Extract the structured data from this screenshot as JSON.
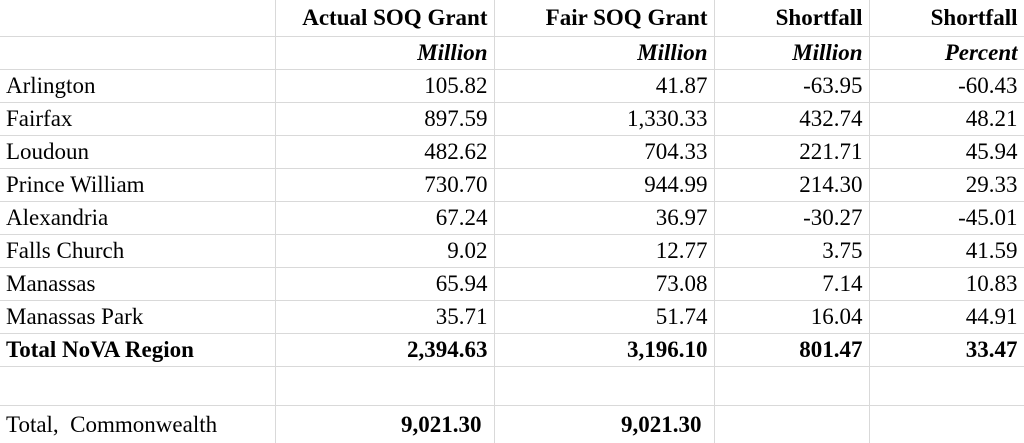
{
  "header": {
    "col1_title": "Actual SOQ Grant",
    "col2_title": "Fair SOQ Grant",
    "col3_title": "Shortfall",
    "col4_title": "Shortfall",
    "col1_unit": "Million",
    "col2_unit": "Million",
    "col3_unit": "Million",
    "col4_unit": "Percent"
  },
  "rows": [
    {
      "name": "Arlington",
      "actual": "105.82",
      "fair": "41.87",
      "shortfall": "-63.95",
      "percent": "-60.43"
    },
    {
      "name": "Fairfax",
      "actual": "897.59",
      "fair": "1,330.33",
      "shortfall": "432.74",
      "percent": "48.21"
    },
    {
      "name": "Loudoun",
      "actual": "482.62",
      "fair": "704.33",
      "shortfall": "221.71",
      "percent": "45.94"
    },
    {
      "name": "Prince William",
      "actual": "730.70",
      "fair": "944.99",
      "shortfall": "214.30",
      "percent": "29.33"
    },
    {
      "name": "Alexandria",
      "actual": "67.24",
      "fair": "36.97",
      "shortfall": "-30.27",
      "percent": "-45.01"
    },
    {
      "name": "Falls Church",
      "actual": "9.02",
      "fair": "12.77",
      "shortfall": "3.75",
      "percent": "41.59"
    },
    {
      "name": "Manassas",
      "actual": "65.94",
      "fair": "73.08",
      "shortfall": "7.14",
      "percent": "10.83"
    },
    {
      "name": "Manassas Park",
      "actual": "35.71",
      "fair": "51.74",
      "shortfall": "16.04",
      "percent": "44.91"
    }
  ],
  "total_region": {
    "name": "Total NoVA Region",
    "actual": "2,394.63",
    "fair": "3,196.10",
    "shortfall": "801.47",
    "percent": "33.47"
  },
  "total_commonwealth": {
    "name": "Total,  Commonwealth",
    "actual": "9,021.30",
    "fair": "9,021.30"
  }
}
